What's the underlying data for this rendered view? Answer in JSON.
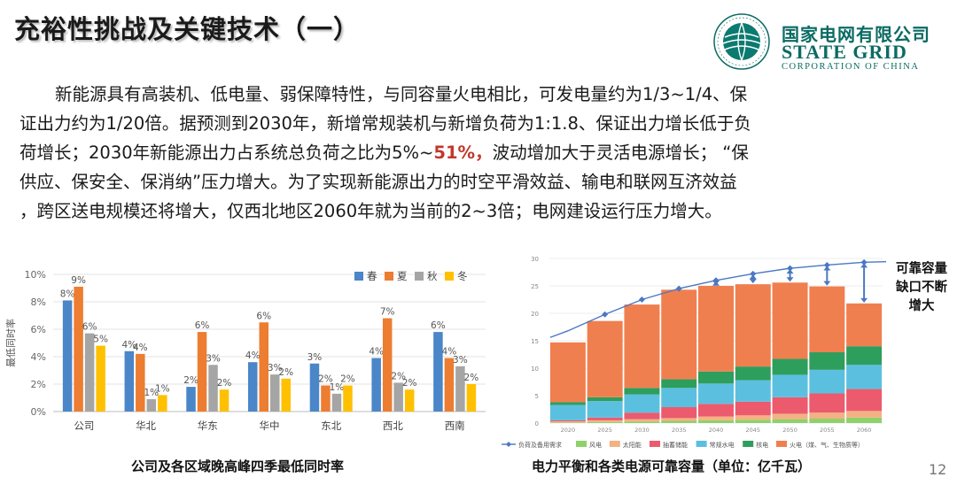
{
  "title": "充裕性挑战及关键技术（一）",
  "logo": {
    "cn": "国家电网有限公司",
    "en": "STATE GRID",
    "sub": "CORPORATION OF CHINA",
    "ring_text": "STATE GRID CORPORATION OF CHINA"
  },
  "paragraph": {
    "lines": [
      "新能源具有高装机、低电量、弱保障特性，与同容量火电相比，可发电量约为1/3~1/4、保",
      "证出力约为1/20倍。据预测到2030年，新增常规装机与新增负荷为1:1.8、保证出力增长低于负",
      "荷增长；2030年新能源出力占系统总负荷之比为5%~",
      "51%，",
      "波动增加大于灵活电源增长；  “保",
      "供应、保安全、保消纳”压力增大。为了实现新能源出力的时空平滑效益、输电和联网互济效益",
      "，跨区送电规模还将增大，仅西北地区2060年就为当前的2~3倍；电网建设运行压力增大。"
    ]
  },
  "left_chart": {
    "caption": "公司及各区域晚高峰四季最低同时率",
    "chart_data": {
      "type": "bar",
      "categories": [
        "公司",
        "华北",
        "华东",
        "华中",
        "东北",
        "西北",
        "西南"
      ],
      "series": [
        {
          "name": "春",
          "color": "#4a86c8",
          "values": [
            8.1,
            4.4,
            1.8,
            3.6,
            3.5,
            3.9,
            5.8
          ],
          "labels": [
            "8%",
            "4%",
            "2%",
            "4%",
            "3%",
            "4%",
            "6%"
          ]
        },
        {
          "name": "夏",
          "color": "#ed7d31",
          "values": [
            9.1,
            4.2,
            5.8,
            6.5,
            1.9,
            6.8,
            3.9
          ],
          "labels": [
            "9%",
            "4%",
            "6%",
            "6%",
            "2%",
            "7%",
            "4%"
          ]
        },
        {
          "name": "秋",
          "color": "#a5a5a5",
          "values": [
            5.7,
            0.9,
            3.4,
            2.7,
            1.3,
            2.1,
            3.3
          ],
          "labels": [
            "6%",
            "1%",
            "3%",
            "3%",
            "1%",
            "2%",
            "3%"
          ]
        },
        {
          "name": "冬",
          "color": "#ffc000",
          "values": [
            4.8,
            1.2,
            1.6,
            2.4,
            1.9,
            1.6,
            2.0
          ],
          "labels": [
            "5%",
            "1%",
            "2%",
            "2%",
            "2%",
            "2%",
            "2%"
          ]
        }
      ],
      "ylabel": "最低同时率",
      "yticks": [
        "0%",
        "2%",
        "4%",
        "6%",
        "8%",
        "10%"
      ],
      "ylim": [
        0,
        10
      ],
      "legend_position": "top-right",
      "grid": true
    }
  },
  "right_chart": {
    "caption": "电力平衡和各类电源可靠容量（单位：亿千瓦）",
    "annotation": [
      "可靠容量",
      "缺口不断",
      "增大"
    ],
    "chart_data": {
      "type": "bar",
      "stacked": true,
      "categories": [
        "2020",
        "2025",
        "2030",
        "2035",
        "2040",
        "2045",
        "2050",
        "2055",
        "2060"
      ],
      "ylim": [
        0,
        30
      ],
      "yticks": [
        "0",
        "5",
        "10",
        "15",
        "20",
        "25",
        "30"
      ],
      "series": [
        {
          "name": "风电",
          "color": "#8fd16a",
          "values": [
            0.1,
            0.2,
            0.3,
            0.4,
            0.5,
            0.6,
            0.7,
            0.8,
            1.0
          ]
        },
        {
          "name": "太阳能",
          "color": "#f4b183",
          "values": [
            0.2,
            0.3,
            0.4,
            0.5,
            0.7,
            0.8,
            1.0,
            1.1,
            1.2
          ]
        },
        {
          "name": "抽蓄储能",
          "color": "#ec5a6e",
          "values": [
            0.2,
            0.5,
            1.2,
            2.0,
            2.3,
            2.5,
            3.0,
            3.5,
            4.0
          ]
        },
        {
          "name": "常规水电",
          "color": "#5bc0e0",
          "values": [
            2.8,
            3.0,
            3.3,
            3.5,
            3.7,
            3.9,
            4.1,
            4.3,
            4.4
          ]
        },
        {
          "name": "核电",
          "color": "#2e9e5c",
          "values": [
            0.5,
            0.7,
            1.2,
            1.6,
            2.2,
            2.5,
            2.9,
            3.2,
            3.4
          ]
        },
        {
          "name": "火电（煤、气、生物质等）",
          "color": "#f07f4f",
          "values": [
            10.9,
            13.9,
            15.2,
            16.3,
            15.6,
            15.0,
            13.9,
            12.0,
            7.8
          ]
        }
      ],
      "line": {
        "name": "负荷及备用需求",
        "color": "#4a78c2",
        "values": [
          16.8,
          19.8,
          22.5,
          24.5,
          26.0,
          27.2,
          28.2,
          28.8,
          29.3
        ]
      },
      "grid": true
    }
  },
  "page_number": "12"
}
